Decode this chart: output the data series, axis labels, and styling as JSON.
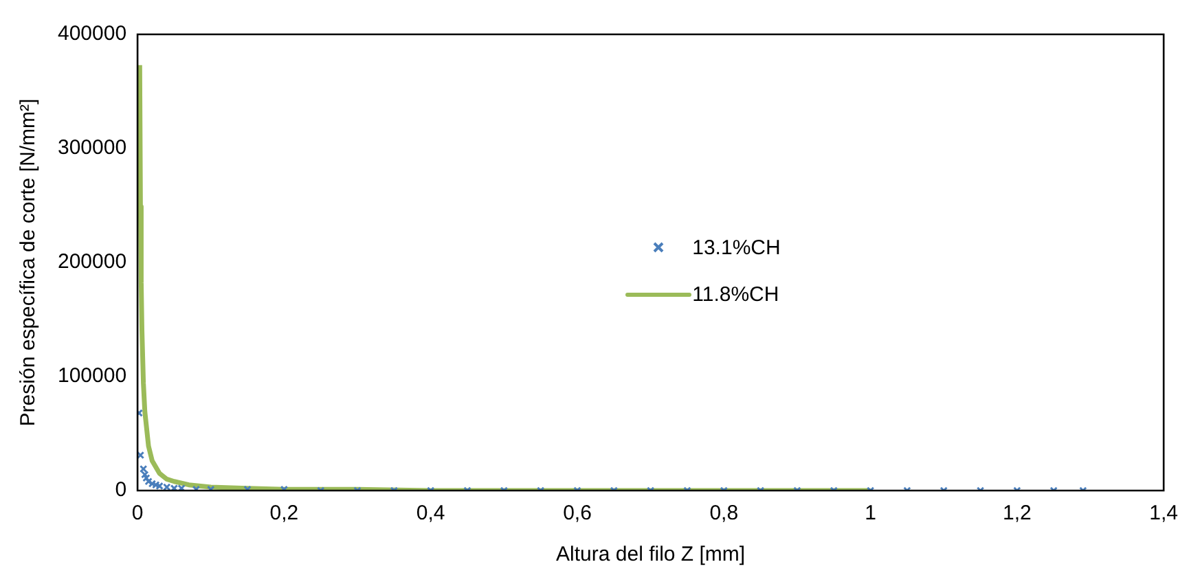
{
  "chart_data": {
    "type": "scatter",
    "xlabel": "Altura del filo Z [mm]",
    "ylabel": "Presión específica de corte [N/mm²]",
    "xlim": [
      0,
      1.4
    ],
    "xticks": [
      0,
      {
        "value": 0.2,
        "label": "0,2"
      },
      {
        "value": 0.4,
        "label": "0,4"
      },
      {
        "value": 0.6,
        "label": "0,6"
      },
      {
        "value": 0.8,
        "label": "0,8"
      },
      1,
      {
        "value": 1.2,
        "label": "1,2"
      },
      {
        "value": 1.4,
        "label": "1,4"
      }
    ],
    "ylim": [
      0,
      400000
    ],
    "yticks": [
      0,
      100000,
      200000,
      300000,
      400000
    ],
    "grid": false,
    "legend": "center",
    "series": [
      {
        "name": "13.1%CH",
        "color": "#4a7ebb",
        "marker": "cross",
        "x": [
          0.002,
          0.004,
          0.008,
          0.01,
          0.012,
          0.015,
          0.02,
          0.025,
          0.03,
          0.04,
          0.05,
          0.06,
          0.08,
          0.1,
          0.15,
          0.2,
          0.25,
          0.3,
          0.35,
          0.4,
          0.45,
          0.5,
          0.55,
          0.6,
          0.65,
          0.7,
          0.75,
          0.8,
          0.85,
          0.9,
          0.95,
          1.0,
          1.05,
          1.1,
          1.15,
          1.2,
          1.25,
          1.29
        ],
        "values": [
          68000,
          31000,
          19000,
          14000,
          11000,
          8000,
          6000,
          5000,
          4000,
          3000,
          2000,
          2000,
          1000,
          1000,
          1000,
          1000,
          0,
          0,
          0,
          0,
          0,
          0,
          0,
          0,
          0,
          0,
          0,
          0,
          0,
          0,
          0,
          0,
          0,
          0,
          0,
          0,
          0,
          0
        ]
      },
      {
        "name": "11.8%CH",
        "color": "#9bbb59",
        "type": "line",
        "marker": "none",
        "x": [
          0.003,
          0.004,
          0.005,
          0.006,
          0.008,
          0.01,
          0.015,
          0.02,
          0.03,
          0.04,
          0.05,
          0.07,
          0.1,
          0.15,
          0.2,
          0.3,
          0.4,
          0.5,
          0.6,
          0.7,
          0.8,
          0.9,
          1.0
        ],
        "values": [
          373000,
          249000,
          182000,
          141000,
          94000,
          69000,
          39000,
          26000,
          15000,
          10000,
          8000,
          5000,
          3000,
          2000,
          1000,
          1000,
          0,
          0,
          0,
          0,
          0,
          0,
          0
        ]
      }
    ]
  }
}
